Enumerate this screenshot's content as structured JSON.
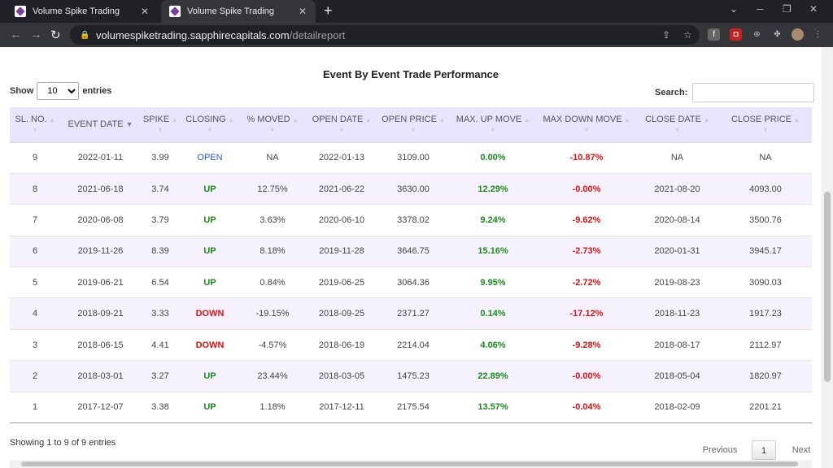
{
  "browser": {
    "tabs": [
      {
        "title": "Volume Spike Trading",
        "active": false
      },
      {
        "title": "Volume Spike Trading",
        "active": true
      }
    ],
    "url_host": "volumespiketrading.sapphirecapitals.com",
    "url_path": "/detailreport"
  },
  "report": {
    "title": "Event By Event Trade Performance",
    "show_label": "Show",
    "entries_label": "entries",
    "page_size": "10",
    "page_size_options": [
      "10"
    ],
    "search_label": "Search:",
    "search_value": "",
    "columns": [
      "SL. NO.",
      "EVENT DATE",
      "SPIKE",
      "CLOSING",
      "% MOVED",
      "OPEN DATE",
      "OPEN PRICE",
      "MAX. UP MOVE",
      "MAX DOWN MOVE",
      "CLOSE DATE",
      "CLOSE PRICE"
    ],
    "rows": [
      [
        "9",
        "2022-01-11",
        "3.99",
        "OPEN",
        "NA",
        "2022-01-13",
        "3109.00",
        "0.00%",
        "-10.87%",
        "NA",
        "NA"
      ],
      [
        "8",
        "2021-06-18",
        "3.74",
        "UP",
        "12.75%",
        "2021-06-22",
        "3630.00",
        "12.29%",
        "-0.00%",
        "2021-08-20",
        "4093.00"
      ],
      [
        "7",
        "2020-06-08",
        "3.79",
        "UP",
        "3.63%",
        "2020-06-10",
        "3378.02",
        "9.24%",
        "-9.62%",
        "2020-08-14",
        "3500.76"
      ],
      [
        "6",
        "2019-11-26",
        "8.39",
        "UP",
        "8.18%",
        "2019-11-28",
        "3646.75",
        "15.16%",
        "-2.73%",
        "2020-01-31",
        "3945.17"
      ],
      [
        "5",
        "2019-06-21",
        "6.54",
        "UP",
        "0.84%",
        "2019-06-25",
        "3064.36",
        "9.95%",
        "-2.72%",
        "2019-08-23",
        "3090.03"
      ],
      [
        "4",
        "2018-09-21",
        "3.33",
        "DOWN",
        "-19.15%",
        "2018-09-25",
        "2371.27",
        "0.14%",
        "-17.12%",
        "2018-11-23",
        "1917.23"
      ],
      [
        "3",
        "2018-06-15",
        "4.41",
        "DOWN",
        "-4.57%",
        "2018-06-19",
        "2214.04",
        "4.06%",
        "-9.28%",
        "2018-08-17",
        "2112.97"
      ],
      [
        "2",
        "2018-03-01",
        "3.27",
        "UP",
        "23.44%",
        "2018-03-05",
        "1475.23",
        "22.89%",
        "-0.00%",
        "2018-05-04",
        "1820.97"
      ],
      [
        "1",
        "2017-12-07",
        "3.38",
        "UP",
        "1.18%",
        "2017-12-11",
        "2175.54",
        "13.57%",
        "-0.04%",
        "2018-02-09",
        "2201.21"
      ]
    ],
    "info": "Showing 1 to 9 of 9 entries",
    "pagination": {
      "previous": "Previous",
      "page": "1",
      "next": "Next"
    }
  },
  "colors": {
    "header_bg": "#e9e4fd",
    "row_alt_bg": "#f6f2fd",
    "up": "#1a8a1a",
    "down": "#dd1111",
    "open": "#2255ee"
  }
}
